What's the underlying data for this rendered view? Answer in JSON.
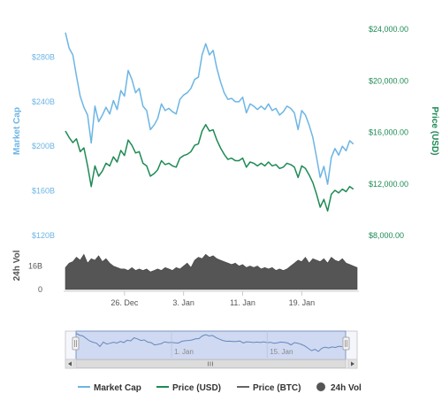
{
  "chart_data": {
    "type": "line",
    "colors": {
      "market_cap": "#6cb5e4",
      "price_usd": "#1e8a55",
      "price_btc": "#666666",
      "volume": "#555555",
      "navigator_fill": "#c8d3f0",
      "navigator_line": "#6688bb"
    },
    "axes": {
      "market_cap": {
        "title": "Market Cap",
        "ticks": [
          "$280B",
          "$240B",
          "$200B",
          "$160B",
          "$120B"
        ],
        "tick_values": [
          280,
          240,
          200,
          160,
          120
        ],
        "range": [
          120,
          305
        ]
      },
      "price_usd": {
        "title": "Price (USD)",
        "ticks": [
          "$24,000.00",
          "$20,000.00",
          "$16,000.00",
          "$12,000.00",
          "$8,000.00"
        ],
        "tick_values": [
          24000,
          20000,
          16000,
          12000,
          8000
        ],
        "range": [
          8000,
          24000
        ]
      },
      "volume": {
        "title": "24h Vol",
        "ticks": [
          "16B",
          "0"
        ],
        "tick_values": [
          16,
          0
        ],
        "range": [
          0,
          32
        ]
      }
    },
    "x_axis": {
      "range": [
        0,
        39.5
      ],
      "ticks": [
        {
          "label": "26. Dec",
          "day": 8
        },
        {
          "label": "3. Jan",
          "day": 16
        },
        {
          "label": "11. Jan",
          "day": 24
        },
        {
          "label": "19. Jan",
          "day": 32
        }
      ]
    },
    "navigator": {
      "ticks": [
        {
          "label": "1. Jan",
          "day": 14
        },
        {
          "label": "15. Jan",
          "day": 28
        }
      ]
    },
    "series": [
      {
        "name": "Market Cap",
        "axis": "market_cap",
        "x": [
          0,
          0.5,
          1,
          1.5,
          2,
          2.5,
          3,
          3.5,
          4,
          4.5,
          5,
          5.5,
          6,
          6.5,
          7,
          7.5,
          8,
          8.5,
          9,
          9.5,
          10,
          10.5,
          11,
          11.5,
          12,
          12.5,
          13,
          13.5,
          14,
          14.5,
          15,
          15.5,
          16,
          16.5,
          17,
          17.5,
          18,
          18.5,
          19,
          19.5,
          20,
          20.5,
          21,
          21.5,
          22,
          22.5,
          23,
          23.5,
          24,
          24.5,
          25,
          25.5,
          26,
          26.5,
          27,
          27.5,
          28,
          28.5,
          29,
          29.5,
          30,
          30.5,
          31,
          31.5,
          32,
          32.5,
          33,
          33.5,
          34,
          34.5,
          35,
          35.5,
          36,
          36.5,
          37,
          37.5,
          38,
          38.5,
          39
        ],
        "values": [
          302,
          288,
          282,
          263,
          245,
          235,
          228,
          203,
          236,
          222,
          228,
          235,
          229,
          241,
          233,
          250,
          245,
          268,
          260,
          248,
          252,
          236,
          232,
          215,
          219,
          225,
          238,
          232,
          234,
          231,
          229,
          242,
          246,
          248,
          252,
          260,
          262,
          282,
          292,
          282,
          286,
          270,
          258,
          248,
          242,
          243,
          240,
          240,
          244,
          230,
          238,
          236,
          233,
          236,
          233,
          238,
          232,
          234,
          228,
          231,
          236,
          234,
          230,
          215,
          232,
          228,
          219,
          208,
          190,
          172,
          182,
          166,
          190,
          198,
          192,
          200,
          196,
          205,
          202
        ]
      },
      {
        "name": "Price (USD)",
        "axis": "price_usd",
        "x": [
          0,
          0.5,
          1,
          1.5,
          2,
          2.5,
          3,
          3.5,
          4,
          4.5,
          5,
          5.5,
          6,
          6.5,
          7,
          7.5,
          8,
          8.5,
          9,
          9.5,
          10,
          10.5,
          11,
          11.5,
          12,
          12.5,
          13,
          13.5,
          14,
          14.5,
          15,
          15.5,
          16,
          16.5,
          17,
          17.5,
          18,
          18.5,
          19,
          19.5,
          20,
          20.5,
          21,
          21.5,
          22,
          22.5,
          23,
          23.5,
          24,
          24.5,
          25,
          25.5,
          26,
          26.5,
          27,
          27.5,
          28,
          28.5,
          29,
          29.5,
          30,
          30.5,
          31,
          31.5,
          32,
          32.5,
          33,
          33.5,
          34,
          34.5,
          35,
          35.5,
          36,
          36.5,
          37,
          37.5,
          38,
          38.5,
          39
        ],
        "values": [
          16100,
          15600,
          15200,
          15500,
          14500,
          14800,
          13400,
          11800,
          13400,
          12600,
          13000,
          13600,
          13400,
          14100,
          13700,
          14600,
          14200,
          15400,
          15000,
          14400,
          14500,
          13600,
          13400,
          12600,
          12800,
          13100,
          13800,
          13500,
          13600,
          13400,
          13300,
          14000,
          14200,
          14300,
          14500,
          15000,
          15100,
          16100,
          16600,
          16100,
          16200,
          15400,
          14800,
          14300,
          13900,
          14000,
          13800,
          13800,
          14000,
          13300,
          13700,
          13600,
          13400,
          13600,
          13400,
          13700,
          13400,
          13500,
          13200,
          13300,
          13600,
          13500,
          13300,
          12500,
          13400,
          13200,
          12700,
          12100,
          11200,
          10200,
          10800,
          9900,
          11200,
          11500,
          11300,
          11600,
          11400,
          11800,
          11600
        ]
      },
      {
        "name": "Price (BTC)",
        "values": []
      },
      {
        "name": "24h Vol",
        "axis": "volume",
        "x": [
          0,
          0.5,
          1,
          1.5,
          2,
          2.5,
          3,
          3.5,
          4,
          4.5,
          5,
          5.5,
          6,
          6.5,
          7,
          7.5,
          8,
          8.5,
          9,
          9.5,
          10,
          10.5,
          11,
          11.5,
          12,
          12.5,
          13,
          13.5,
          14,
          14.5,
          15,
          15.5,
          16,
          16.5,
          17,
          17.5,
          18,
          18.5,
          19,
          19.5,
          20,
          20.5,
          21,
          21.5,
          22,
          22.5,
          23,
          23.5,
          24,
          24.5,
          25,
          25.5,
          26,
          26.5,
          27,
          27.5,
          28,
          28.5,
          29,
          29.5,
          30,
          30.5,
          31,
          31.5,
          32,
          32.5,
          33,
          33.5,
          34,
          34.5,
          35,
          35.5,
          36,
          36.5,
          37,
          37.5,
          38,
          38.5,
          39,
          39.5
        ],
        "values": [
          15,
          18,
          19,
          22,
          20,
          24,
          18,
          21,
          20,
          23,
          19,
          21,
          18,
          16,
          15,
          14,
          14,
          13,
          15,
          13,
          14,
          13,
          14,
          12,
          13,
          14,
          13,
          15,
          14,
          13,
          15,
          14,
          16,
          18,
          15,
          20,
          22,
          21,
          24,
          22,
          23,
          21,
          20,
          19,
          18,
          17,
          18,
          16,
          17,
          15,
          16,
          15,
          16,
          14,
          15,
          14,
          15,
          13,
          14,
          13,
          14,
          16,
          18,
          20,
          19,
          22,
          18,
          21,
          20,
          19,
          21,
          18,
          22,
          20,
          19,
          21,
          18,
          17,
          16,
          15
        ]
      }
    ],
    "legend": {
      "position": "bottom",
      "items": [
        {
          "label": "Market Cap",
          "symbol": "line",
          "color": "#6cb5e4"
        },
        {
          "label": "Price (USD)",
          "symbol": "line",
          "color": "#1e8a55"
        },
        {
          "label": "Price (BTC)",
          "symbol": "line",
          "color": "#666666"
        },
        {
          "label": "24h Vol",
          "symbol": "dot",
          "color": "#555555"
        }
      ]
    },
    "grid": false
  }
}
